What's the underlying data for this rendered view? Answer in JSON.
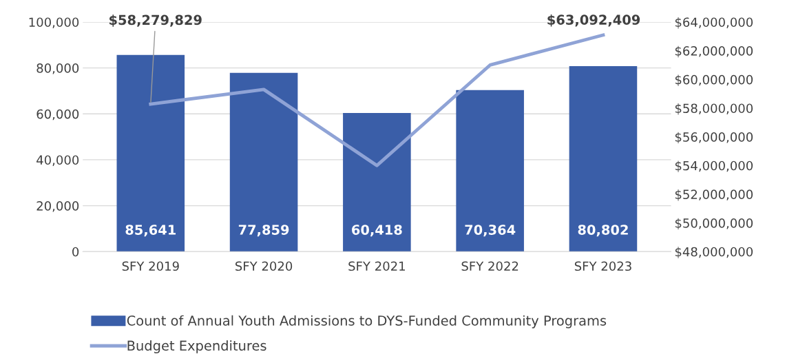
{
  "chart_data": {
    "type": "bar",
    "categories": [
      "SFY 2019",
      "SFY 2020",
      "SFY 2021",
      "SFY 2022",
      "SFY 2023"
    ],
    "series": [
      {
        "name": "Count of Annual Youth Admissions to DYS-Funded Community Programs",
        "color": "#3a5ea8",
        "values": [
          85641,
          77859,
          60418,
          70364,
          80802
        ],
        "value_labels": [
          "85,641",
          "77,859",
          "60,418",
          "70,364",
          "80,802"
        ]
      },
      {
        "name": "Budget Expenditures",
        "type": "line",
        "axis": "y2",
        "color": "#8fa3d6",
        "values": [
          58279829,
          59300000,
          54000000,
          61000000,
          63092409
        ],
        "value_labels": [
          "$58,279,829",
          null,
          null,
          null,
          "$63,092,409"
        ]
      }
    ],
    "ylim": [
      0,
      100000
    ],
    "yticks": [
      {
        "value": 0,
        "label": "0"
      },
      {
        "value": 20000,
        "label": "20,000"
      },
      {
        "value": 40000,
        "label": "40,000"
      },
      {
        "value": 60000,
        "label": "60,000"
      },
      {
        "value": 80000,
        "label": "80,000"
      },
      {
        "value": 100000,
        "label": "100,000"
      }
    ],
    "y2lim": [
      48000000,
      64000000
    ],
    "y2ticks": [
      {
        "value": 48000000,
        "label": "$48,000,000"
      },
      {
        "value": 50000000,
        "label": "$50,000,000"
      },
      {
        "value": 52000000,
        "label": "$52,000,000"
      },
      {
        "value": 54000000,
        "label": "$54,000,000"
      },
      {
        "value": 56000000,
        "label": "$56,000,000"
      },
      {
        "value": 58000000,
        "label": "$58,000,000"
      },
      {
        "value": 60000000,
        "label": "$60,000,000"
      },
      {
        "value": 62000000,
        "label": "$62,000,000"
      },
      {
        "value": 64000000,
        "label": "$64,000,000"
      }
    ],
    "grid": "y",
    "legend": "bottom"
  }
}
